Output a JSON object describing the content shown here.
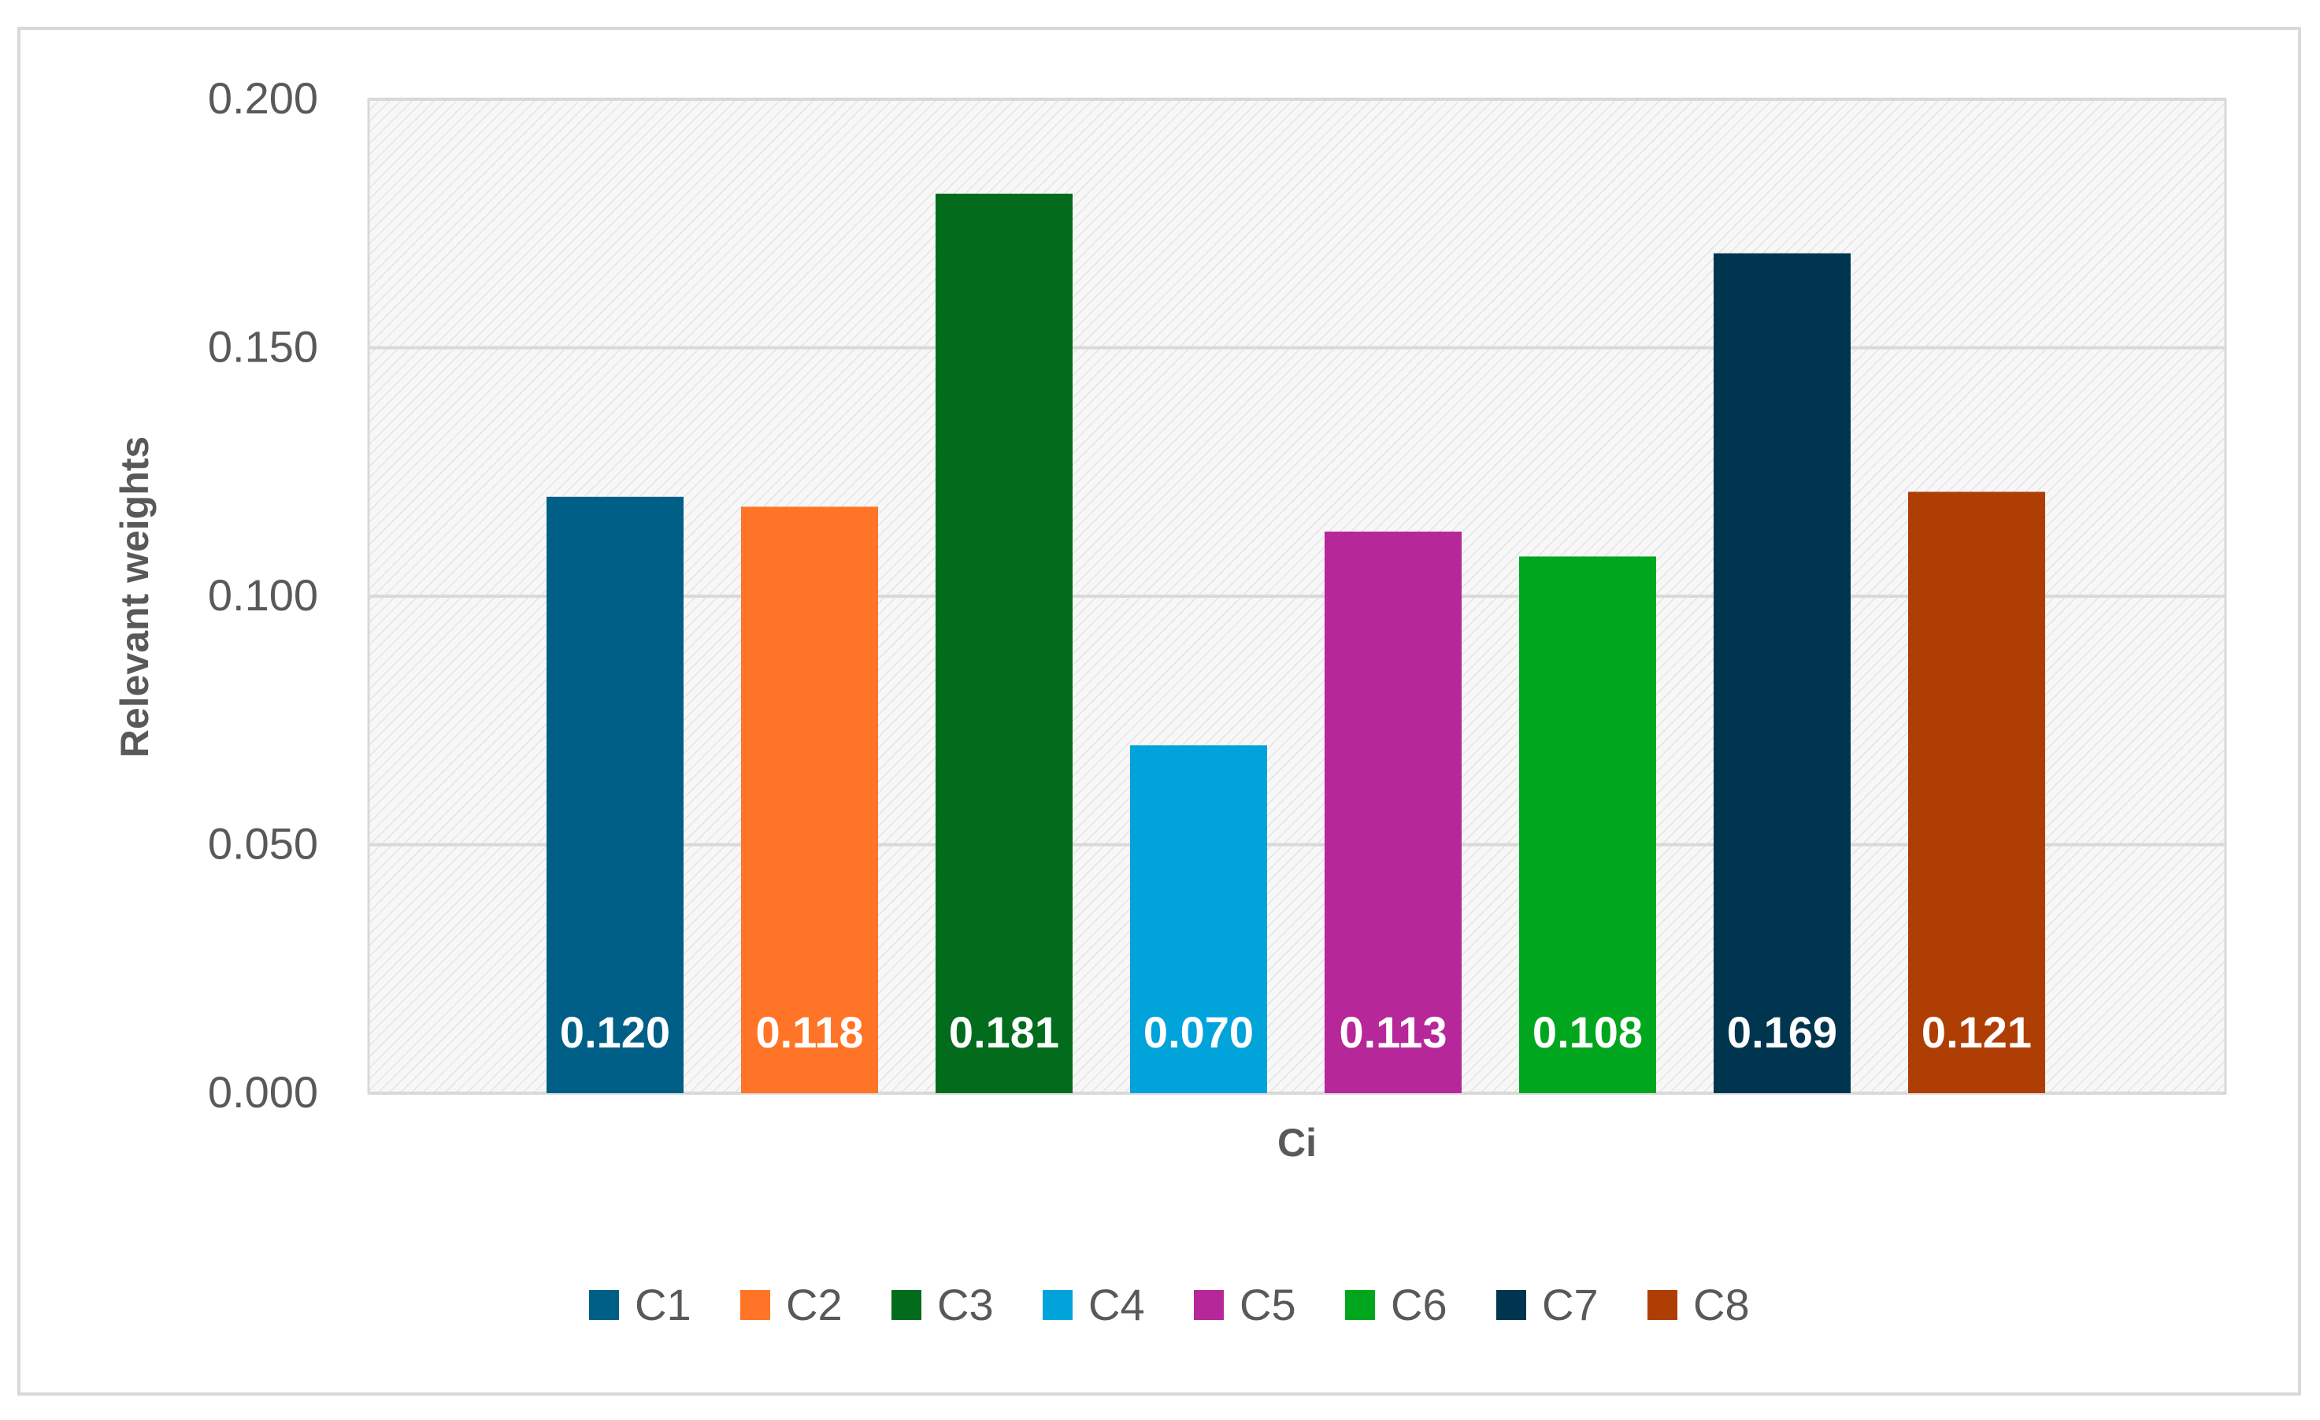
{
  "chart_data": {
    "type": "bar",
    "title": "",
    "xlabel": "Ci",
    "ylabel": "Relevant weights",
    "ylim": [
      0,
      0.2
    ],
    "yticks": [
      "0.000",
      "0.050",
      "0.100",
      "0.150",
      "0.200"
    ],
    "grid": true,
    "legend_position": "bottom",
    "series": [
      {
        "name": "C1",
        "value": 0.12,
        "label": "0.120",
        "color": "#005F87"
      },
      {
        "name": "C2",
        "value": 0.118,
        "label": "0.118",
        "color": "#FF7427"
      },
      {
        "name": "C3",
        "value": 0.181,
        "label": "0.181",
        "color": "#026B1C"
      },
      {
        "name": "C4",
        "value": 0.07,
        "label": "0.070",
        "color": "#00A3DA"
      },
      {
        "name": "C5",
        "value": 0.113,
        "label": "0.113",
        "color": "#B6279A"
      },
      {
        "name": "C6",
        "value": 0.108,
        "label": "0.108",
        "color": "#00A61D"
      },
      {
        "name": "C7",
        "value": 0.169,
        "label": "0.169",
        "color": "#00354F"
      },
      {
        "name": "C8",
        "value": 0.121,
        "label": "0.121",
        "color": "#AF3E05"
      }
    ]
  }
}
